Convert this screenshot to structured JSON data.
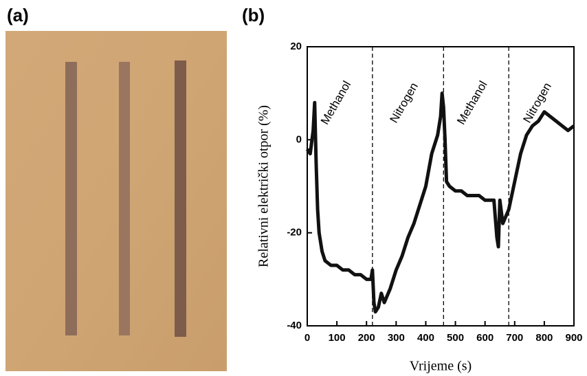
{
  "panel_labels": [
    "(a)",
    "(b)"
  ],
  "chart_data": {
    "type": "line",
    "xlabel": "Vrijeme (s)",
    "ylabel": "Relativni električki otpor (%)",
    "x": [
      0,
      10,
      20,
      25,
      30,
      35,
      40,
      50,
      60,
      80,
      100,
      120,
      140,
      160,
      180,
      200,
      215,
      220,
      225,
      230,
      240,
      250,
      260,
      280,
      300,
      320,
      340,
      360,
      380,
      400,
      420,
      440,
      450,
      455,
      460,
      465,
      470,
      480,
      500,
      520,
      540,
      560,
      580,
      600,
      620,
      630,
      640,
      645,
      650,
      660,
      680,
      700,
      720,
      740,
      760,
      780,
      800,
      820,
      840,
      860,
      880,
      900
    ],
    "series": [
      {
        "color": "#111111",
        "values": [
          -2,
          -3,
          2,
          8,
          -5,
          -15,
          -20,
          -24,
          -26,
          -27,
          -27,
          -28,
          -28,
          -29,
          -29,
          -30,
          -30,
          -28,
          -35,
          -37,
          -36,
          -33,
          -35,
          -32,
          -28,
          -25,
          -21,
          -18,
          -14,
          -10,
          -3,
          1,
          5,
          10,
          7,
          0,
          -9,
          -10,
          -11,
          -11,
          -12,
          -12,
          -12,
          -13,
          -13,
          -13,
          -21,
          -23,
          -13,
          -18,
          -15,
          -9,
          -3,
          1,
          3,
          4,
          6,
          5,
          4,
          3,
          2,
          3
        ]
      }
    ],
    "dividers": [
      220,
      460,
      680
    ],
    "annotations": [
      "Methanol",
      "Nitrogen",
      "Methanol",
      "Nitrogen"
    ],
    "xlim": [
      0,
      900
    ],
    "xticks": [
      0,
      100,
      200,
      300,
      400,
      500,
      600,
      700,
      800,
      900
    ],
    "ylim": [
      -40,
      20
    ],
    "yticks": [
      -40,
      -20,
      0,
      20
    ]
  }
}
